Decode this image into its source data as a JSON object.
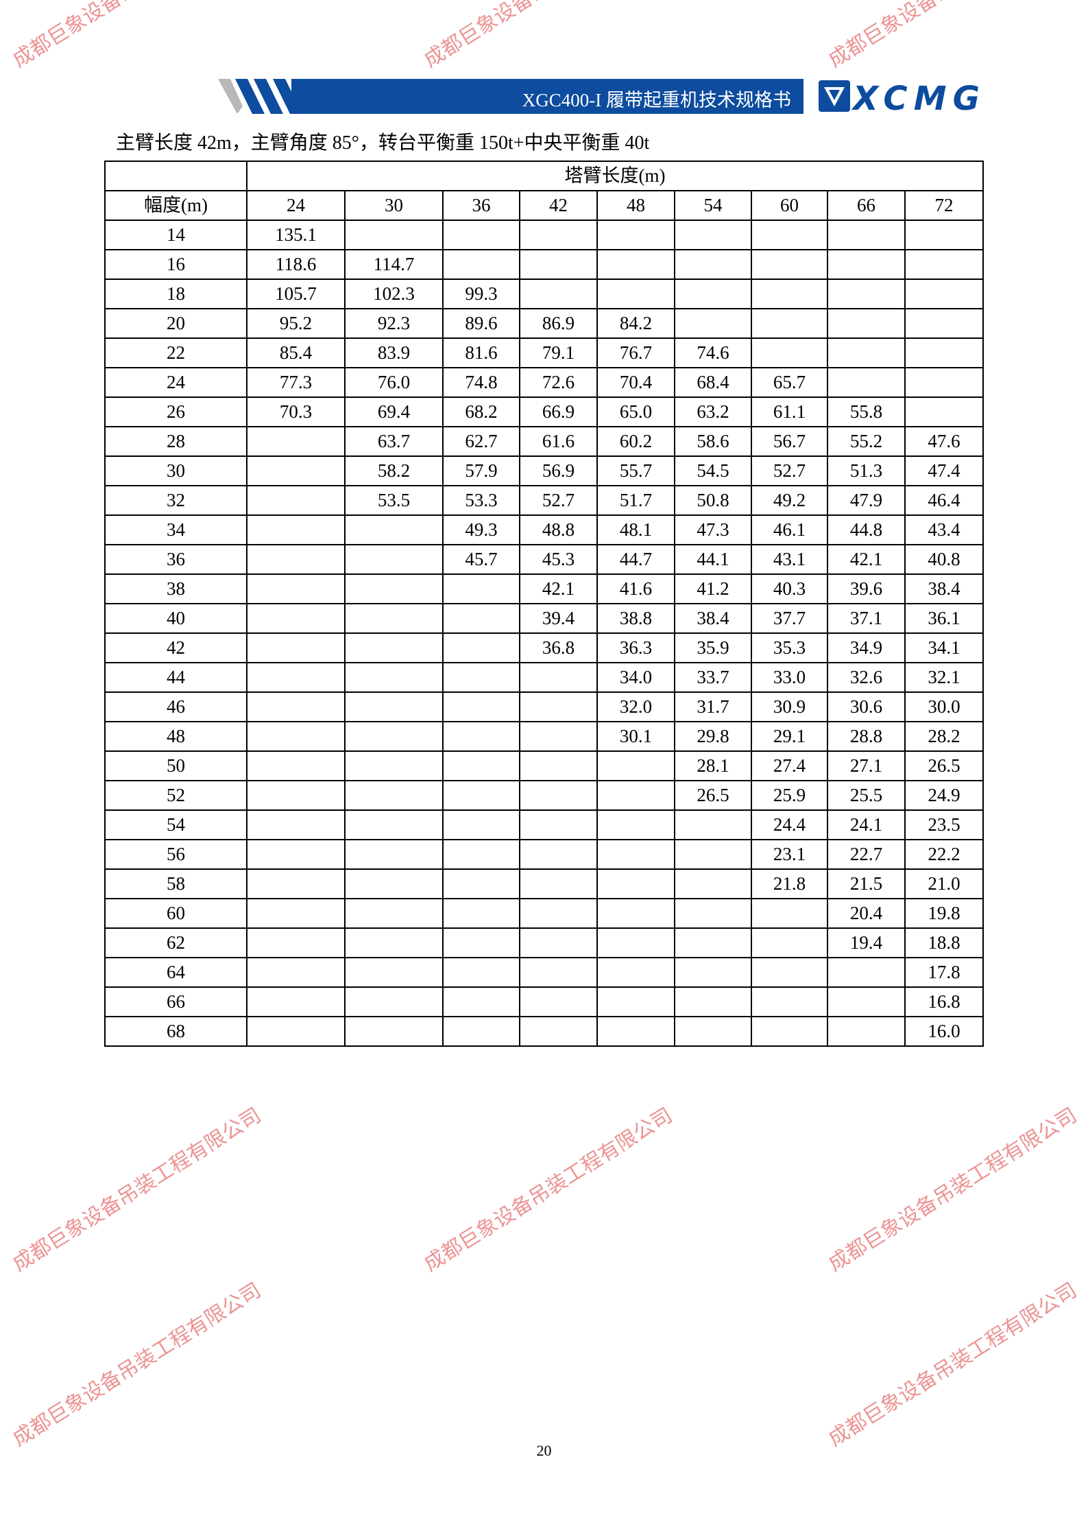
{
  "header": {
    "title": "XGC400-I 履带起重机技术规格书",
    "logo_text": "XCMG",
    "brand_color": "#0d4c9e"
  },
  "caption": "主臂长度 42m，主臂角度 85°，转台平衡重 150t+中央平衡重 40t",
  "table": {
    "corner": "",
    "group_header": "塔臂长度(m)",
    "row_header": "幅度(m)",
    "columns": [
      "24",
      "30",
      "36",
      "42",
      "48",
      "54",
      "60",
      "66",
      "72"
    ],
    "rows": [
      {
        "radius": "14",
        "values": [
          "135.1",
          "",
          "",
          "",
          "",
          "",
          "",
          "",
          ""
        ]
      },
      {
        "radius": "16",
        "values": [
          "118.6",
          "114.7",
          "",
          "",
          "",
          "",
          "",
          "",
          ""
        ]
      },
      {
        "radius": "18",
        "values": [
          "105.7",
          "102.3",
          "99.3",
          "",
          "",
          "",
          "",
          "",
          ""
        ]
      },
      {
        "radius": "20",
        "values": [
          "95.2",
          "92.3",
          "89.6",
          "86.9",
          "84.2",
          "",
          "",
          "",
          ""
        ]
      },
      {
        "radius": "22",
        "values": [
          "85.4",
          "83.9",
          "81.6",
          "79.1",
          "76.7",
          "74.6",
          "",
          "",
          ""
        ]
      },
      {
        "radius": "24",
        "values": [
          "77.3",
          "76.0",
          "74.8",
          "72.6",
          "70.4",
          "68.4",
          "65.7",
          "",
          ""
        ]
      },
      {
        "radius": "26",
        "values": [
          "70.3",
          "69.4",
          "68.2",
          "66.9",
          "65.0",
          "63.2",
          "61.1",
          "55.8",
          ""
        ]
      },
      {
        "radius": "28",
        "values": [
          "",
          "63.7",
          "62.7",
          "61.6",
          "60.2",
          "58.6",
          "56.7",
          "55.2",
          "47.6"
        ]
      },
      {
        "radius": "30",
        "values": [
          "",
          "58.2",
          "57.9",
          "56.9",
          "55.7",
          "54.5",
          "52.7",
          "51.3",
          "47.4"
        ]
      },
      {
        "radius": "32",
        "values": [
          "",
          "53.5",
          "53.3",
          "52.7",
          "51.7",
          "50.8",
          "49.2",
          "47.9",
          "46.4"
        ]
      },
      {
        "radius": "34",
        "values": [
          "",
          "",
          "49.3",
          "48.8",
          "48.1",
          "47.3",
          "46.1",
          "44.8",
          "43.4"
        ]
      },
      {
        "radius": "36",
        "values": [
          "",
          "",
          "45.7",
          "45.3",
          "44.7",
          "44.1",
          "43.1",
          "42.1",
          "40.8"
        ]
      },
      {
        "radius": "38",
        "values": [
          "",
          "",
          "",
          "42.1",
          "41.6",
          "41.2",
          "40.3",
          "39.6",
          "38.4"
        ]
      },
      {
        "radius": "40",
        "values": [
          "",
          "",
          "",
          "39.4",
          "38.8",
          "38.4",
          "37.7",
          "37.1",
          "36.1"
        ]
      },
      {
        "radius": "42",
        "values": [
          "",
          "",
          "",
          "36.8",
          "36.3",
          "35.9",
          "35.3",
          "34.9",
          "34.1"
        ]
      },
      {
        "radius": "44",
        "values": [
          "",
          "",
          "",
          "",
          "34.0",
          "33.7",
          "33.0",
          "32.6",
          "32.1"
        ]
      },
      {
        "radius": "46",
        "values": [
          "",
          "",
          "",
          "",
          "32.0",
          "31.7",
          "30.9",
          "30.6",
          "30.0"
        ]
      },
      {
        "radius": "48",
        "values": [
          "",
          "",
          "",
          "",
          "30.1",
          "29.8",
          "29.1",
          "28.8",
          "28.2"
        ]
      },
      {
        "radius": "50",
        "values": [
          "",
          "",
          "",
          "",
          "",
          "28.1",
          "27.4",
          "27.1",
          "26.5"
        ]
      },
      {
        "radius": "52",
        "values": [
          "",
          "",
          "",
          "",
          "",
          "26.5",
          "25.9",
          "25.5",
          "24.9"
        ]
      },
      {
        "radius": "54",
        "values": [
          "",
          "",
          "",
          "",
          "",
          "",
          "24.4",
          "24.1",
          "23.5"
        ]
      },
      {
        "radius": "56",
        "values": [
          "",
          "",
          "",
          "",
          "",
          "",
          "23.1",
          "22.7",
          "22.2"
        ]
      },
      {
        "radius": "58",
        "values": [
          "",
          "",
          "",
          "",
          "",
          "",
          "21.8",
          "21.5",
          "21.0"
        ]
      },
      {
        "radius": "60",
        "values": [
          "",
          "",
          "",
          "",
          "",
          "",
          "",
          "20.4",
          "19.8"
        ]
      },
      {
        "radius": "62",
        "values": [
          "",
          "",
          "",
          "",
          "",
          "",
          "",
          "19.4",
          "18.8"
        ]
      },
      {
        "radius": "64",
        "values": [
          "",
          "",
          "",
          "",
          "",
          "",
          "",
          "",
          "17.8"
        ]
      },
      {
        "radius": "66",
        "values": [
          "",
          "",
          "",
          "",
          "",
          "",
          "",
          "",
          "16.8"
        ]
      },
      {
        "radius": "68",
        "values": [
          "",
          "",
          "",
          "",
          "",
          "",
          "",
          "",
          "16.0"
        ]
      }
    ]
  },
  "page_number": "20",
  "watermark": {
    "text": "成都巨象设备吊装工程有限公司",
    "color": "#dc3c3c"
  }
}
